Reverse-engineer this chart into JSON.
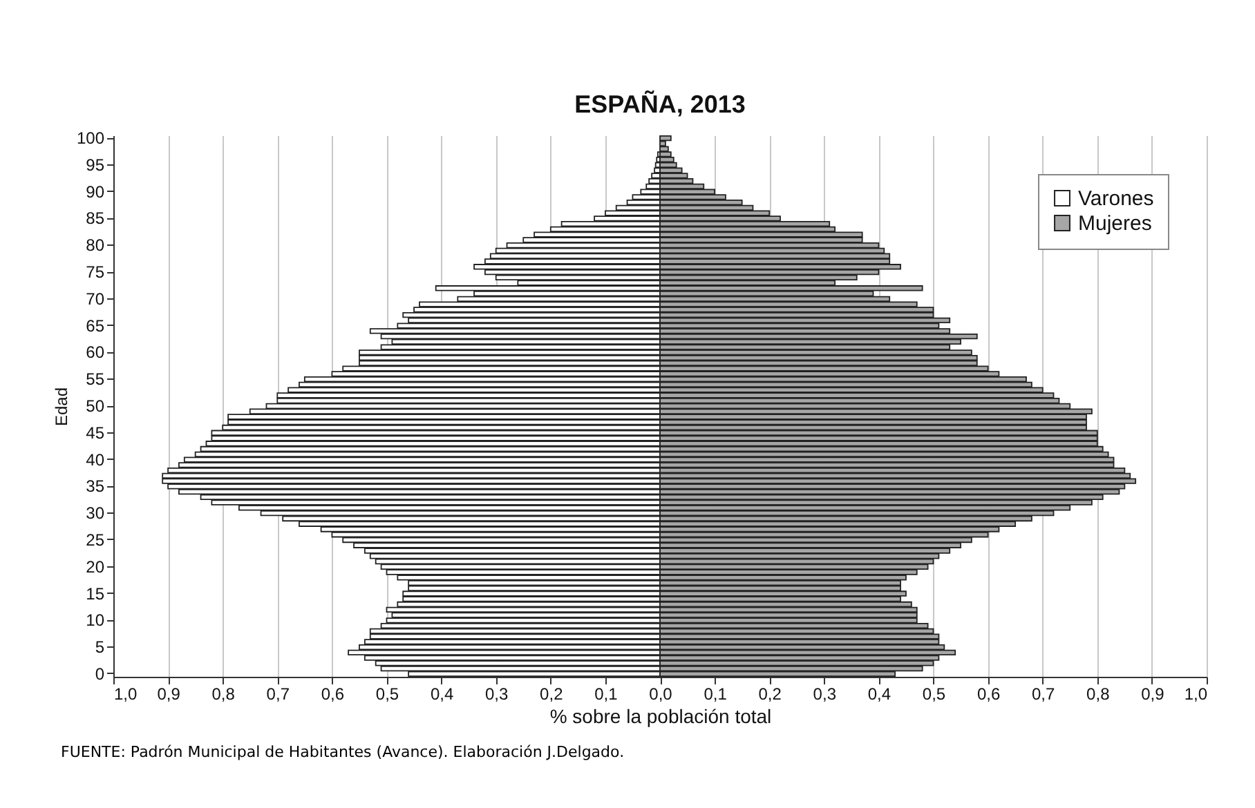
{
  "chart_data": {
    "type": "bar",
    "orientation": "horizontal",
    "title": "ESPAÑA, 2013",
    "xlabel": "% sobre la población total",
    "ylabel": "Edad",
    "annotations": [
      "FUENTE: Padrón Municipal de Habitantes (Avance). Elaboración J.Delgado."
    ],
    "categories": [
      "100",
      null,
      null,
      null,
      null,
      "95",
      null,
      null,
      null,
      null,
      "90",
      null,
      null,
      null,
      null,
      "85",
      null,
      null,
      null,
      null,
      "80",
      null,
      null,
      null,
      null,
      "75",
      null,
      null,
      null,
      null,
      "70",
      null,
      null,
      null,
      null,
      "65",
      null,
      null,
      null,
      null,
      "60",
      null,
      null,
      null,
      null,
      "55",
      null,
      null,
      null,
      null,
      "50",
      null,
      null,
      null,
      null,
      "45",
      null,
      null,
      null,
      null,
      "40",
      null,
      null,
      null,
      null,
      "35",
      null,
      null,
      null,
      null,
      "30",
      null,
      null,
      null,
      null,
      "25",
      null,
      null,
      null,
      null,
      "20",
      null,
      null,
      null,
      null,
      "15",
      null,
      null,
      null,
      null,
      "10",
      null,
      null,
      null,
      null,
      "5",
      null,
      null,
      null,
      null,
      "0"
    ],
    "series": [
      {
        "name": "Varones",
        "color": "#ffffff",
        "values": [
          null,
          null,
          null,
          -0.004,
          -0.006,
          -0.008,
          -0.01,
          -0.015,
          -0.02,
          -0.025,
          -0.035,
          -0.05,
          -0.06,
          -0.08,
          -0.1,
          -0.12,
          -0.18,
          -0.2,
          -0.23,
          -0.25,
          -0.28,
          -0.3,
          -0.31,
          -0.32,
          -0.34,
          -0.32,
          -0.3,
          -0.26,
          -0.41,
          -0.34,
          -0.37,
          -0.44,
          -0.45,
          -0.47,
          -0.46,
          -0.48,
          -0.53,
          -0.51,
          -0.49,
          -0.51,
          -0.55,
          -0.55,
          -0.55,
          -0.58,
          -0.6,
          -0.65,
          -0.66,
          -0.68,
          -0.7,
          -0.7,
          -0.72,
          -0.75,
          -0.79,
          -0.79,
          -0.8,
          -0.82,
          -0.82,
          -0.83,
          -0.84,
          -0.85,
          -0.87,
          -0.88,
          -0.9,
          -0.91,
          -0.91,
          -0.9,
          -0.88,
          -0.84,
          -0.82,
          -0.77,
          -0.73,
          -0.69,
          -0.66,
          -0.62,
          -0.6,
          -0.58,
          -0.56,
          -0.54,
          -0.53,
          -0.52,
          -0.51,
          -0.5,
          -0.48,
          -0.46,
          -0.46,
          -0.47,
          -0.47,
          -0.48,
          -0.5,
          -0.49,
          -0.5,
          -0.51,
          -0.53,
          -0.53,
          -0.54,
          -0.55,
          -0.57,
          -0.54,
          -0.52,
          -0.51,
          -0.46
        ]
      },
      {
        "name": "Mujeres",
        "color": "#a6a6a6",
        "values": [
          0.02,
          0.01,
          0.015,
          0.02,
          0.025,
          0.03,
          0.04,
          0.05,
          0.06,
          0.08,
          0.1,
          0.12,
          0.15,
          0.17,
          0.2,
          0.22,
          0.31,
          0.32,
          0.37,
          0.37,
          0.4,
          0.41,
          0.42,
          0.42,
          0.44,
          0.4,
          0.36,
          0.32,
          0.48,
          0.39,
          0.42,
          0.47,
          0.5,
          0.5,
          0.53,
          0.51,
          0.53,
          0.58,
          0.55,
          0.53,
          0.57,
          0.58,
          0.58,
          0.6,
          0.62,
          0.67,
          0.68,
          0.7,
          0.72,
          0.73,
          0.75,
          0.79,
          0.78,
          0.78,
          0.78,
          0.8,
          0.8,
          0.8,
          0.81,
          0.82,
          0.83,
          0.83,
          0.85,
          0.86,
          0.87,
          0.85,
          0.84,
          0.81,
          0.79,
          0.75,
          0.72,
          0.68,
          0.65,
          0.62,
          0.6,
          0.57,
          0.55,
          0.53,
          0.51,
          0.5,
          0.49,
          0.47,
          0.45,
          0.44,
          0.44,
          0.45,
          0.44,
          0.46,
          0.47,
          0.47,
          0.47,
          0.49,
          0.5,
          0.51,
          0.51,
          0.52,
          0.54,
          0.51,
          0.5,
          0.48,
          0.43
        ]
      }
    ],
    "xlim": [
      -1,
      1
    ],
    "xticks": [
      {
        "value": -1,
        "label": "1,0"
      },
      {
        "value": -0.9,
        "label": "0,9"
      },
      {
        "value": -0.8,
        "label": "0,8"
      },
      {
        "value": -0.7,
        "label": "0,7"
      },
      {
        "value": -0.6,
        "label": "0,6"
      },
      {
        "value": -0.5,
        "label": "0,5"
      },
      {
        "value": -0.4,
        "label": "0,4"
      },
      {
        "value": -0.3,
        "label": "0,3"
      },
      {
        "value": -0.2,
        "label": "0,2"
      },
      {
        "value": -0.1,
        "label": "0,1"
      },
      {
        "value": 0,
        "label": "0,0"
      },
      {
        "value": 0.1,
        "label": "0,1"
      },
      {
        "value": 0.2,
        "label": "0,2"
      },
      {
        "value": 0.3,
        "label": "0,3"
      },
      {
        "value": 0.4,
        "label": "0,4"
      },
      {
        "value": 0.5,
        "label": "0,5"
      },
      {
        "value": 0.6,
        "label": "0,6"
      },
      {
        "value": 0.7,
        "label": "0,7"
      },
      {
        "value": 0.8,
        "label": "0,8"
      },
      {
        "value": 0.9,
        "label": "0,9"
      },
      {
        "value": 1,
        "label": "1,0"
      }
    ],
    "grid": "x",
    "legend": "top right",
    "stacked": true
  }
}
